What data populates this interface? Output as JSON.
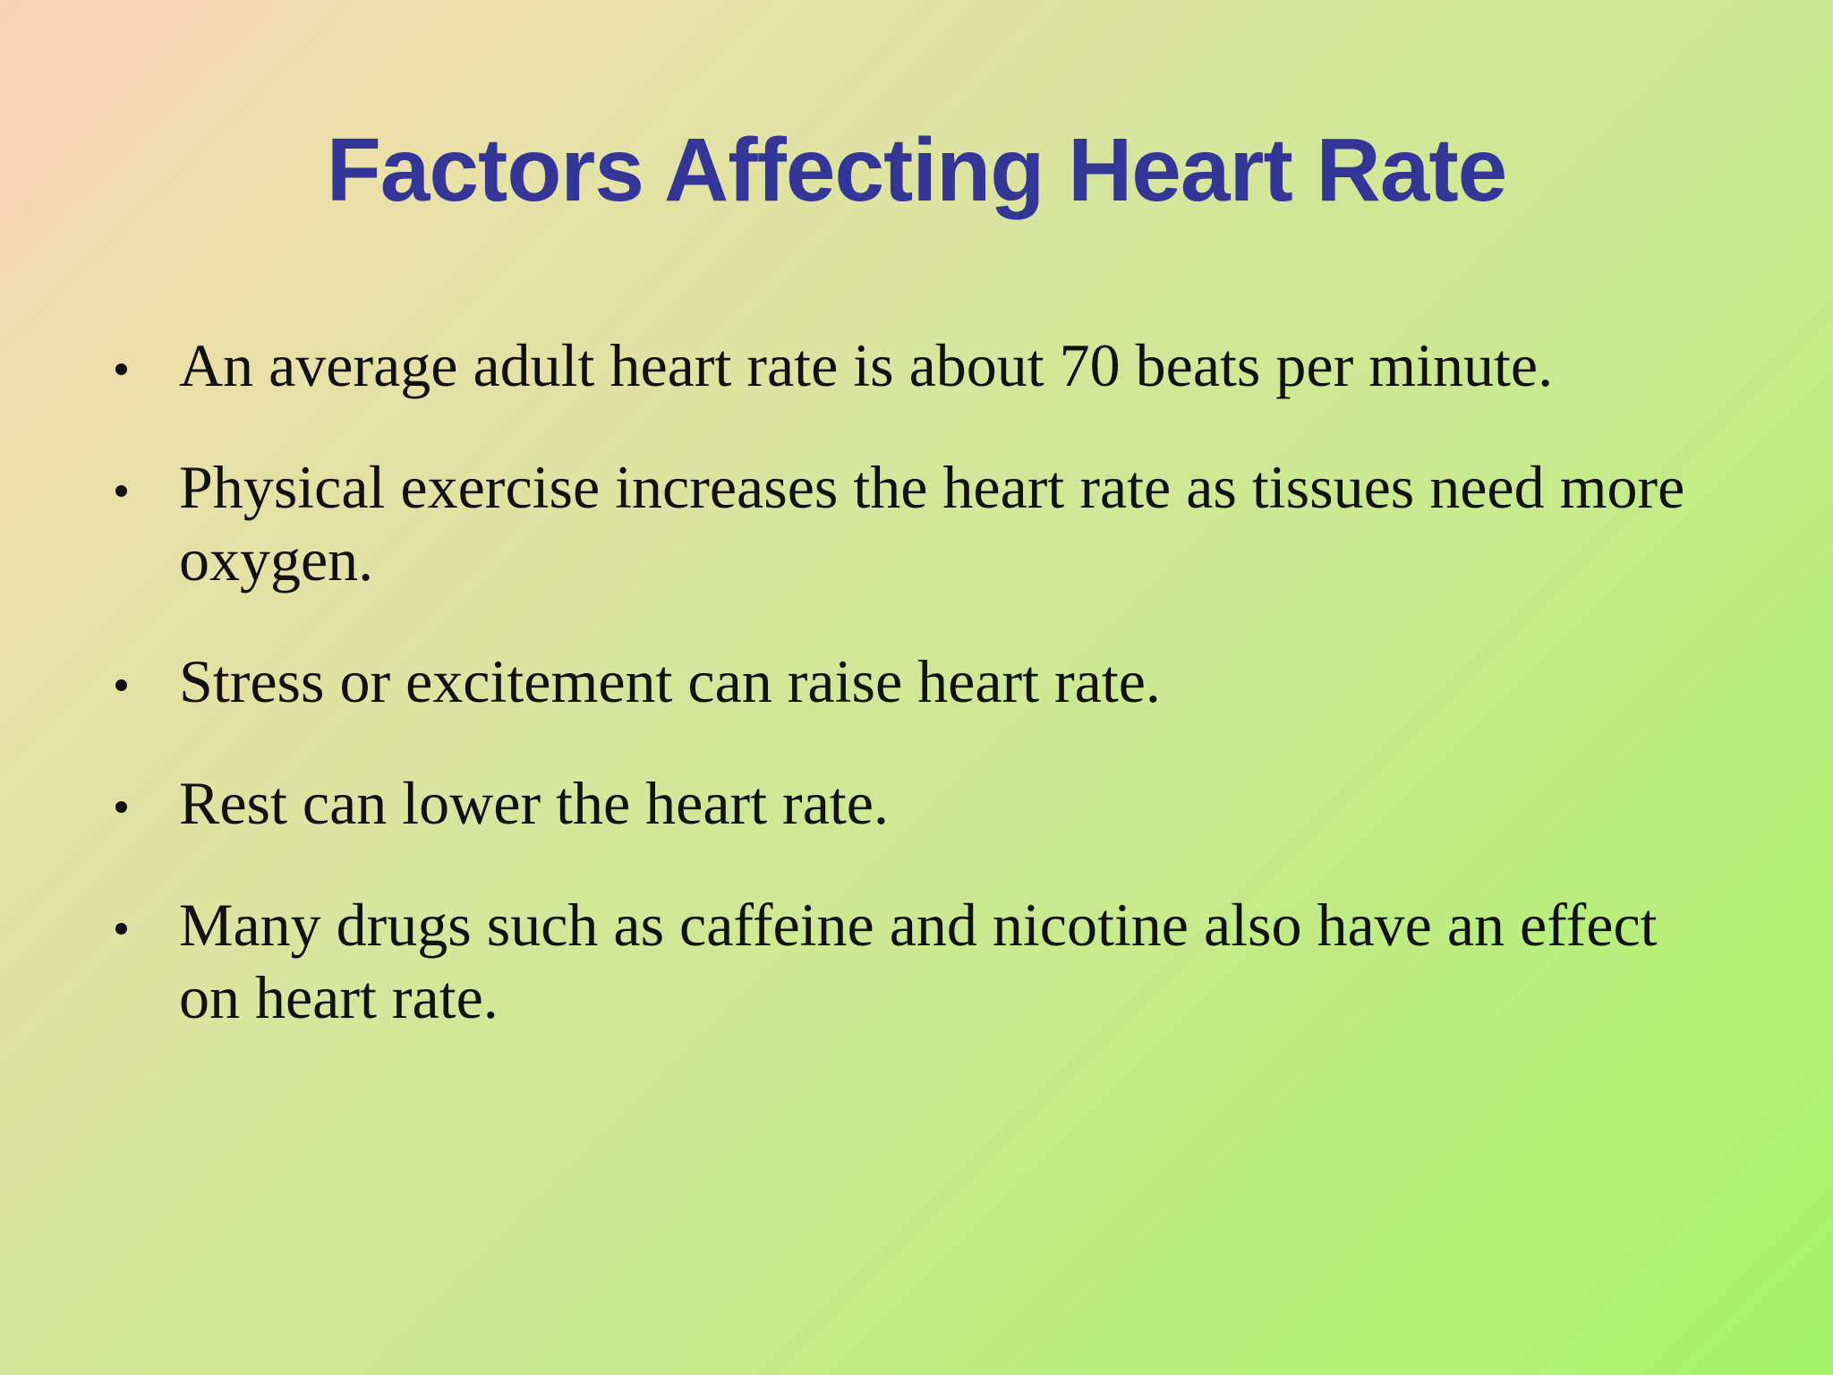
{
  "title": "Factors Affecting Heart Rate",
  "bullets": [
    "An average adult heart rate is about 70 beats per minute.",
    "Physical exercise increases the heart rate as tissues need more oxygen.",
    "Stress or excitement can raise heart rate.",
    "Rest can lower the heart rate.",
    "Many drugs such as caffeine and nicotine also have an effect on heart rate."
  ]
}
